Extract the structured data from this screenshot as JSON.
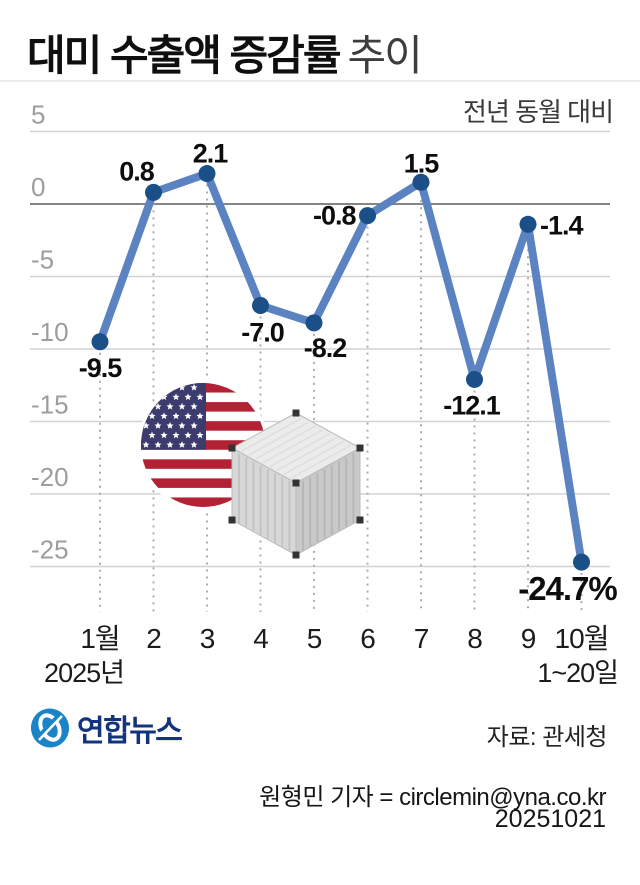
{
  "header": {
    "title_bold": "대미 수출액 증감률",
    "title_light": "추이",
    "subtitle": "전년 동월 대비"
  },
  "chart_data": {
    "type": "line",
    "title": "대미 수출액 증감률 추이",
    "unit_note": "전년 동월 대비",
    "categories": [
      "1월",
      "2",
      "3",
      "4",
      "5",
      "6",
      "7",
      "8",
      "9",
      "10월"
    ],
    "values": [
      -9.5,
      0.8,
      2.1,
      -7.0,
      -8.2,
      -0.8,
      1.5,
      -12.1,
      -1.4,
      -24.7
    ],
    "point_labels": [
      "-9.5",
      "0.8",
      "2.1",
      "-7.0",
      "-8.2",
      "-0.8",
      "1.5",
      "-12.1",
      "-1.4",
      "-24.7%"
    ],
    "yticks": [
      5,
      0,
      -5,
      -10,
      -15,
      -20,
      -25
    ],
    "ylim": [
      -28,
      5
    ],
    "x_sub_label_first": "2025년",
    "x_sub_label_last": "1~20일",
    "grid": true,
    "legend": "none",
    "line_color": "#5b83c1",
    "dot_color": "#1a4f87"
  },
  "illustrations": {
    "flag": "us-flag-circle",
    "container": "shipping-container",
    "flag_red": "#B22234",
    "flag_blue": "#3C3B6E"
  },
  "footer": {
    "logo_text": "연합뉴스",
    "source": "자료: 관세청",
    "credit": "원형민 기자 = circlemin@yna.co.kr",
    "date": "20251021"
  }
}
